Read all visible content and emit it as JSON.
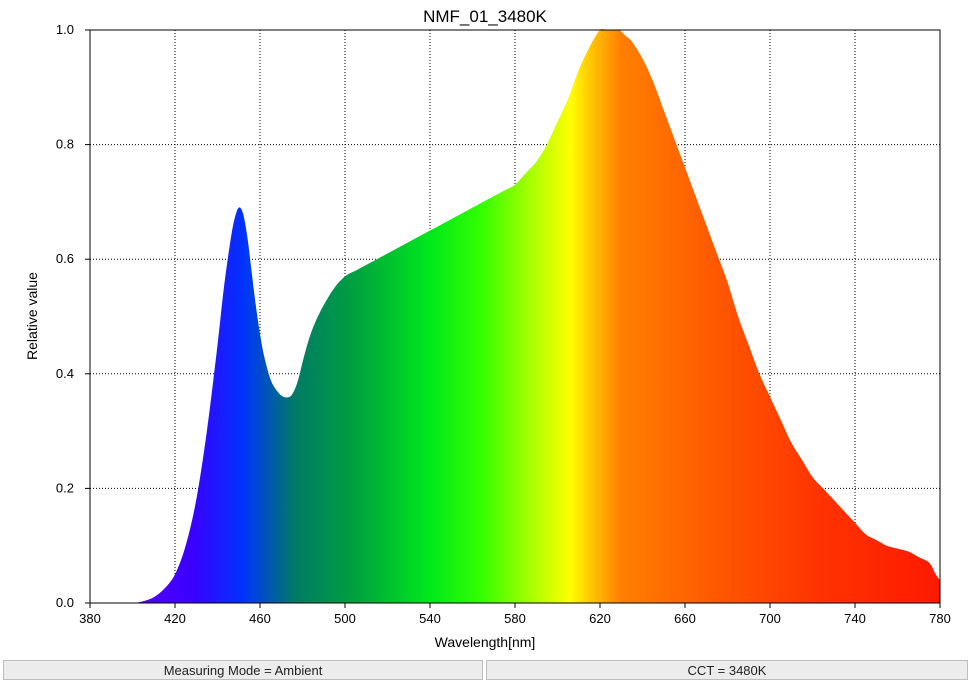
{
  "chart_data": {
    "type": "area",
    "title": "NMF_01_3480K",
    "xlabel": "Wavelength[nm]",
    "ylabel": "Relative value",
    "xlim": [
      380,
      780
    ],
    "ylim": [
      0,
      1.0
    ],
    "xticks": [
      380,
      420,
      460,
      500,
      540,
      580,
      620,
      660,
      700,
      740,
      780
    ],
    "yticks": [
      0.0,
      0.2,
      0.4,
      0.6,
      0.8,
      1.0
    ],
    "ytick_labels": [
      "0.0",
      "0.2",
      "0.4",
      "0.6",
      "0.8",
      "1.0"
    ],
    "grid": true,
    "fill": "visible-spectrum gradient",
    "series": [
      {
        "x": [
          380,
          390,
          400,
          405,
          410,
          415,
          420,
          425,
          430,
          435,
          440,
          443,
          446,
          448,
          450,
          452,
          454,
          456,
          458,
          460,
          462,
          465,
          468,
          471,
          474,
          476,
          478,
          480,
          483,
          486,
          490,
          495,
          500,
          505,
          510,
          515,
          520,
          525,
          530,
          535,
          540,
          545,
          550,
          555,
          560,
          565,
          570,
          575,
          580,
          585,
          590,
          595,
          600,
          605,
          610,
          615,
          620,
          623,
          626,
          629,
          632,
          635,
          640,
          645,
          650,
          655,
          660,
          665,
          670,
          675,
          680,
          685,
          690,
          695,
          700,
          705,
          710,
          715,
          720,
          725,
          730,
          735,
          740,
          745,
          750,
          755,
          760,
          765,
          770,
          775,
          778,
          780
        ],
        "y": [
          0,
          0,
          0,
          0.003,
          0.01,
          0.025,
          0.05,
          0.1,
          0.18,
          0.3,
          0.45,
          0.55,
          0.63,
          0.67,
          0.69,
          0.68,
          0.64,
          0.58,
          0.52,
          0.47,
          0.43,
          0.39,
          0.37,
          0.36,
          0.36,
          0.37,
          0.39,
          0.42,
          0.46,
          0.49,
          0.52,
          0.55,
          0.57,
          0.58,
          0.59,
          0.6,
          0.61,
          0.62,
          0.63,
          0.64,
          0.65,
          0.66,
          0.67,
          0.68,
          0.69,
          0.7,
          0.71,
          0.72,
          0.73,
          0.75,
          0.77,
          0.8,
          0.84,
          0.88,
          0.93,
          0.97,
          1.0,
          1.0,
          1.0,
          1.0,
          0.99,
          0.98,
          0.95,
          0.91,
          0.86,
          0.81,
          0.76,
          0.71,
          0.66,
          0.61,
          0.56,
          0.5,
          0.45,
          0.4,
          0.36,
          0.32,
          0.28,
          0.25,
          0.22,
          0.2,
          0.18,
          0.16,
          0.14,
          0.12,
          0.11,
          0.1,
          0.095,
          0.09,
          0.08,
          0.07,
          0.05,
          0.04
        ]
      }
    ]
  },
  "status": {
    "left": "Measuring Mode = Ambient",
    "right": "CCT = 3480K"
  }
}
